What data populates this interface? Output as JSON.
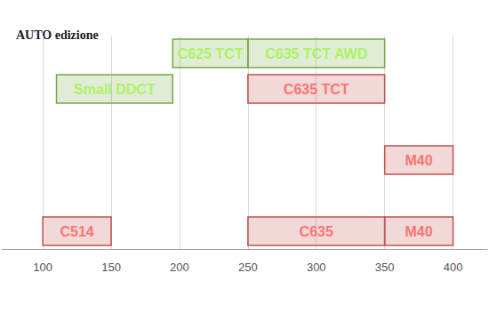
{
  "chart_data": {
    "type": "range_bar",
    "orientation": "horizontal",
    "annotation": "AUTO edizione",
    "categories": [
      null,
      null,
      null,
      null,
      null,
      null
    ],
    "bars": [
      {
        "label": "C514",
        "start": 100,
        "end": 150,
        "row": 0,
        "color": "#c0504d"
      },
      {
        "label": "C635",
        "start": 250,
        "end": 350,
        "row": 0,
        "color": "#c0504d"
      },
      {
        "label": "M40",
        "start": 350,
        "end": 400,
        "row": 0,
        "color": "#c0504d"
      },
      {
        "label": "M40",
        "start": 350,
        "end": 400,
        "row": 2,
        "color": "#c0504d"
      },
      {
        "label": "Small DDCT",
        "start": 110,
        "end": 195,
        "row": 4,
        "color": "#76a843"
      },
      {
        "label": "C635 TCT",
        "start": 250,
        "end": 350,
        "row": 4,
        "color": "#c0504d"
      },
      {
        "label": "C625 TCT",
        "start": 195,
        "end": 250,
        "row": 5,
        "color": "#76a843"
      },
      {
        "label": "C635 TCT AWD",
        "start": 250,
        "end": 350,
        "row": 5,
        "color": "#76a843"
      }
    ],
    "data_labels": true,
    "xlim": [
      70,
      425
    ],
    "xticks": [
      100,
      150,
      200,
      250,
      300,
      350,
      400
    ],
    "grid": true,
    "tick_labels": "x"
  }
}
